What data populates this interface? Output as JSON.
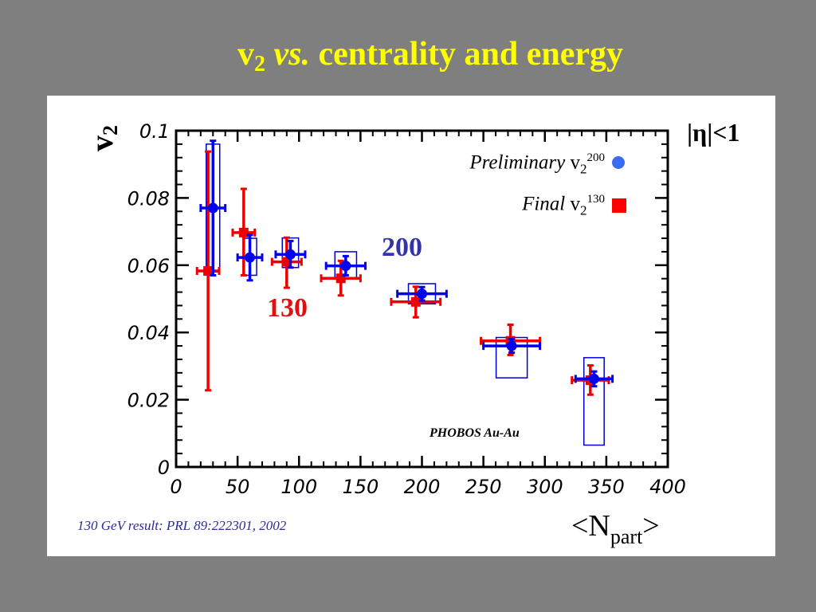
{
  "slide": {
    "title_var": "v",
    "title_sub": "2",
    "title_vs": "vs.",
    "title_rest": "centrality and energy",
    "reference": "130 GeV result: PRL 89:222301, 2002"
  },
  "chart_data": {
    "type": "scatter",
    "title": "",
    "ylabel_main": "v",
    "ylabel_sub": "2",
    "xlabel_main": "<N",
    "xlabel_sub": "part",
    "xlabel_close": ">",
    "xlim": [
      0,
      400
    ],
    "ylim": [
      0,
      0.1
    ],
    "x_ticks": [
      0,
      50,
      100,
      150,
      200,
      250,
      300,
      350,
      400
    ],
    "x_tick_labels": [
      "0",
      "50",
      "100",
      "150",
      "200",
      "250",
      "300",
      "350",
      "400"
    ],
    "y_ticks": [
      0,
      0.02,
      0.04,
      0.06,
      0.08,
      0.1
    ],
    "y_tick_labels": [
      "0",
      "0.02",
      "0.04",
      "0.06",
      "0.08",
      "0.1"
    ],
    "grid": false,
    "cut_label": "|η|<1",
    "experiment_label": "PHOBOS Au-Au",
    "annotations": [
      "200",
      "130"
    ],
    "legend_position": "top-right",
    "series": [
      {
        "name": "Preliminary v2 200",
        "legend_italic": "Preliminary",
        "legend_var": "v",
        "legend_sub": "2",
        "legend_sup": "200",
        "color": "#0000ee",
        "marker": "circle",
        "points": [
          {
            "x": 30,
            "y": 0.077,
            "xerr": 10,
            "ylo": 0.057,
            "yhi": 0.097,
            "syslo": 0.058,
            "syshi": 0.096
          },
          {
            "x": 60,
            "y": 0.0623,
            "xerr": 10,
            "ylo": 0.0555,
            "yhi": 0.069,
            "syslo": 0.057,
            "syshi": 0.068
          },
          {
            "x": 93,
            "y": 0.0632,
            "xerr": 12,
            "ylo": 0.0593,
            "yhi": 0.0672,
            "syslo": 0.0593,
            "syshi": 0.0681
          },
          {
            "x": 138,
            "y": 0.0598,
            "xerr": 16,
            "ylo": 0.057,
            "yhi": 0.0627,
            "syslo": 0.056,
            "syshi": 0.064
          },
          {
            "x": 200,
            "y": 0.0515,
            "xerr": 20,
            "ylo": 0.0495,
            "yhi": 0.0535,
            "syslo": 0.0485,
            "syshi": 0.0545
          },
          {
            "x": 273,
            "y": 0.036,
            "xerr": 23,
            "ylo": 0.034,
            "yhi": 0.038,
            "syslo": 0.0265,
            "syshi": 0.0385
          },
          {
            "x": 340,
            "y": 0.0262,
            "xerr": 15,
            "ylo": 0.024,
            "yhi": 0.0284,
            "syslo": 0.0065,
            "syshi": 0.0325
          }
        ]
      },
      {
        "name": "Final v2 130",
        "legend_italic": "Final",
        "legend_var": "v",
        "legend_sub": "2",
        "legend_sup": "130",
        "color": "#ee0000",
        "marker": "square",
        "points": [
          {
            "x": 26,
            "y": 0.0583,
            "xerr": 9,
            "ylo": 0.0228,
            "yhi": 0.0938
          },
          {
            "x": 55,
            "y": 0.0697,
            "xerr": 9,
            "ylo": 0.057,
            "yhi": 0.0827
          },
          {
            "x": 90,
            "y": 0.061,
            "xerr": 12,
            "ylo": 0.0533,
            "yhi": 0.0682
          },
          {
            "x": 134,
            "y": 0.0561,
            "xerr": 16,
            "ylo": 0.051,
            "yhi": 0.0613
          },
          {
            "x": 195,
            "y": 0.0491,
            "xerr": 20,
            "ylo": 0.0445,
            "yhi": 0.0536
          },
          {
            "x": 272,
            "y": 0.0375,
            "xerr": 24,
            "ylo": 0.0333,
            "yhi": 0.0423
          },
          {
            "x": 337,
            "y": 0.0258,
            "xerr": 15,
            "ylo": 0.0215,
            "yhi": 0.0302
          }
        ]
      }
    ]
  }
}
